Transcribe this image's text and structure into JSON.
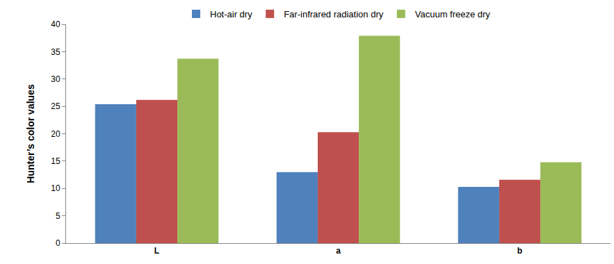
{
  "chart_data": {
    "type": "bar",
    "categories": [
      "L",
      "a",
      "b"
    ],
    "series": [
      {
        "name": "Hot-air dry",
        "color": "#4f81bd",
        "values": [
          25.4,
          13.0,
          10.3
        ]
      },
      {
        "name": "Far-infrared radiation dry",
        "color": "#c0504d",
        "values": [
          26.2,
          20.3,
          11.6
        ]
      },
      {
        "name": "Vacuum freeze dry",
        "color": "#9bbb59",
        "values": [
          33.7,
          37.9,
          14.8
        ]
      }
    ],
    "y_label": "Hunter’s color values",
    "ylim": [
      0,
      40
    ],
    "yticks": [
      0,
      5,
      10,
      15,
      20,
      25,
      30,
      35,
      40
    ],
    "grid": false,
    "legend": "top"
  }
}
